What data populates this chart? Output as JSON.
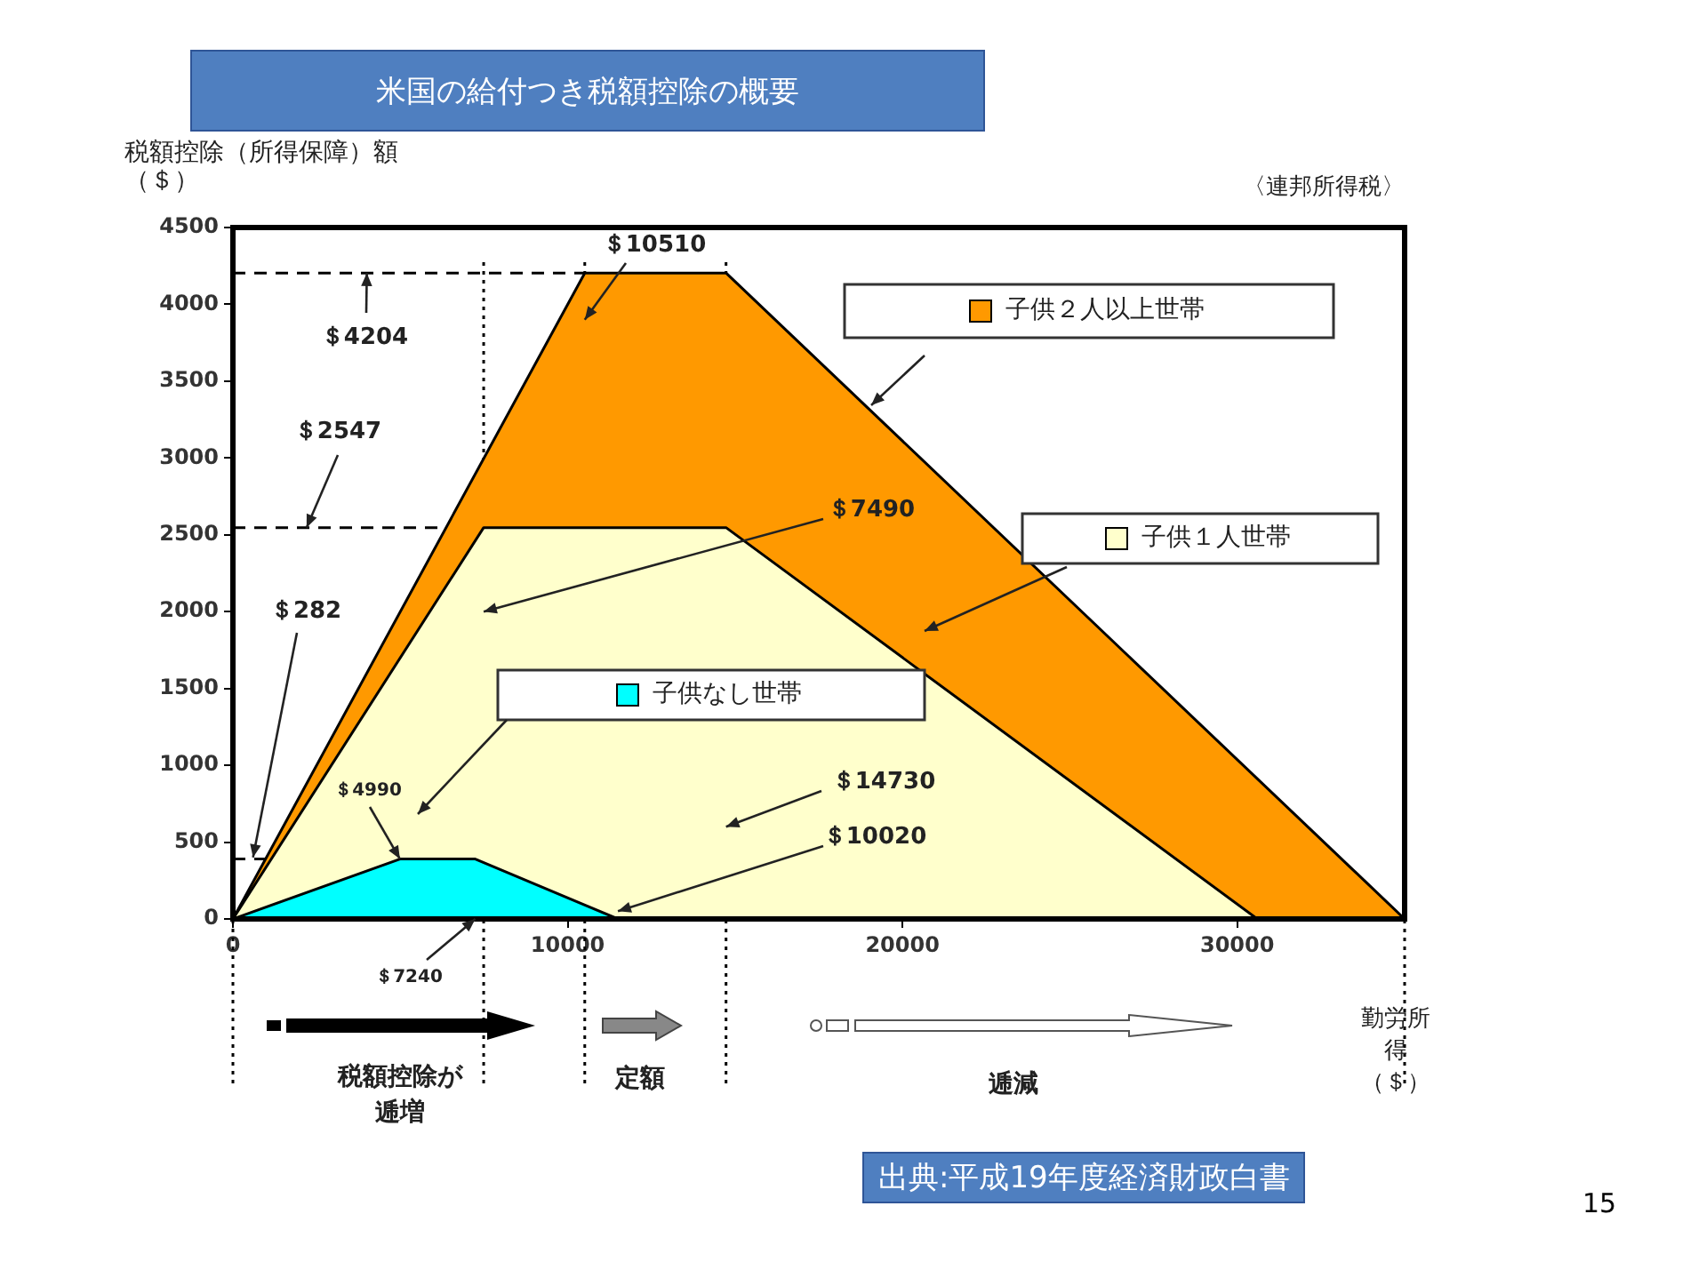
{
  "chart_data": {
    "type": "area",
    "title": "米国の給付つき税額控除の概要",
    "subtitle": "〈連邦所得税〉",
    "ylabel": "税額控除（所得保障）額（＄）",
    "xlabel": "勤労所得（＄）",
    "xlim": [
      0,
      35000
    ],
    "xticks": [
      0,
      10000,
      20000,
      30000
    ],
    "ylim": [
      0,
      4500
    ],
    "yticks": [
      0,
      500,
      1000,
      1500,
      2000,
      2500,
      3000,
      3500,
      4000,
      4500
    ],
    "grid": false,
    "legend": "right",
    "marker": "none",
    "series": [
      {
        "name": "子供２人以上世帯",
        "color": "#ff9900",
        "x": [
          0,
          10510,
          14730,
          35000
        ],
        "values": [
          0,
          4204,
          4204,
          0
        ]
      },
      {
        "name": "子供１人世帯",
        "color": "#ffffcc",
        "x": [
          0,
          7490,
          14730,
          30600
        ],
        "values": [
          0,
          2547,
          2547,
          0
        ]
      },
      {
        "name": "子供なし世帯",
        "color": "#00ffff",
        "x": [
          0,
          4990,
          7240,
          11500
        ],
        "values": [
          0,
          390,
          390,
          0
        ]
      }
    ],
    "ref_lines": [
      {
        "axis": "y",
        "value": 4204,
        "line_style": "dashed",
        "color": "#000000"
      },
      {
        "axis": "y",
        "value": 2547,
        "line_style": "dashed",
        "color": "#000000"
      },
      {
        "axis": "y",
        "value": 390,
        "line_style": "dashed",
        "color": "#000000"
      },
      {
        "axis": "x",
        "value": 0,
        "line_style": "dotted",
        "color": "#000000"
      },
      {
        "axis": "x",
        "value": 7490,
        "line_style": "dotted",
        "color": "#000000"
      },
      {
        "axis": "x",
        "value": 10510,
        "line_style": "dotted",
        "color": "#000000"
      },
      {
        "axis": "x",
        "value": 14730,
        "line_style": "dotted",
        "color": "#000000"
      },
      {
        "axis": "x",
        "value": 35000,
        "line_style": "dotted",
        "color": "#000000"
      }
    ],
    "annotations": [
      {
        "text": "＄10510",
        "x": 10510,
        "y": 3900
      },
      {
        "text": "＄4204",
        "x": 4000,
        "y": 4204
      },
      {
        "text": "＄2547",
        "x": 2200,
        "y": 2547
      },
      {
        "text": "＄7490",
        "x": 7490,
        "y": 2000
      },
      {
        "text": "＄282",
        "x": 600,
        "y": 400
      },
      {
        "text": "＄4990",
        "x": 4990,
        "y": 390
      },
      {
        "text": "＄7240",
        "x": 7240,
        "y": 0
      },
      {
        "text": "＄14730",
        "x": 14730,
        "y": 600
      },
      {
        "text": "＄10020",
        "x": 11500,
        "y": 50
      },
      "税額控除が逓増",
      "定額",
      "逓減",
      "出典:平成19年度経済財政白書",
      "15"
    ]
  }
}
